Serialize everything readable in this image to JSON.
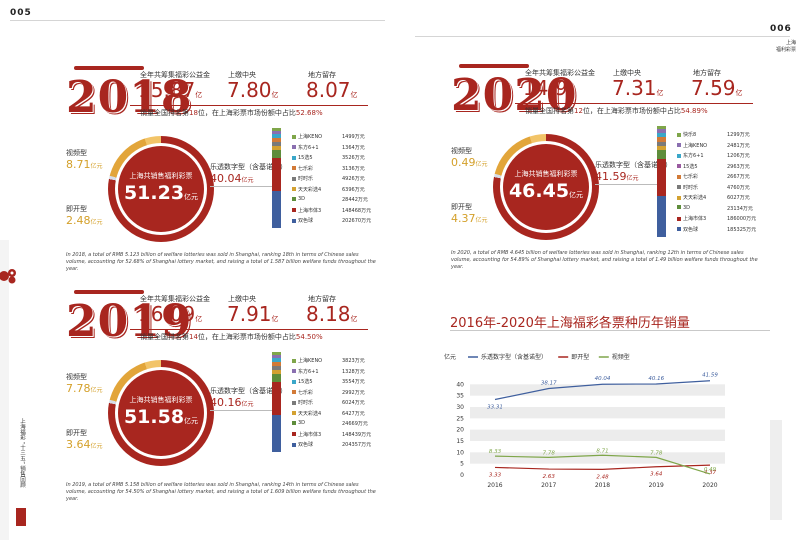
{
  "pages": {
    "left_no": "005",
    "right_no": "006",
    "right_corner": [
      "上海",
      "福利彩票"
    ]
  },
  "side_vertical": "上海福彩 “十三五” 销售回顾",
  "side_page_tag": "",
  "colors": {
    "brand_red": "#a8261f",
    "gold": "#e2a53a",
    "blue": "#3f5f9e",
    "green": "#7fa64a"
  },
  "panels": [
    {
      "id": "2018",
      "year": "2018",
      "kpis": [
        {
          "label": "全年共筹集福彩公益金",
          "value": "15.87",
          "unit": "亿"
        },
        {
          "label": "上缴中央",
          "value": "7.80",
          "unit": "亿"
        },
        {
          "label": "地方留存",
          "value": "8.07",
          "unit": "亿"
        }
      ],
      "rank_pre": "销量全国排名第",
      "rank": "18",
      "rank_mid": "位，在上海彩票市场份额中占比",
      "share": "52.68%",
      "center_label": "上海共销售福利彩票",
      "center_value": "51.23",
      "center_unit": "亿元",
      "video_label": "视频型",
      "video_value": "8.71",
      "video_unit": "亿元",
      "instant_label": "即开型",
      "instant_value": "2.48",
      "instant_unit": "亿元",
      "lotto_label": "乐透数字型（含基诺型）",
      "lotto_value": "40.04",
      "lotto_unit": "亿元",
      "games": [
        {
          "name": "上海KENO",
          "value": "1499万元",
          "color": "#7fa64a"
        },
        {
          "name": "东方6+1",
          "value": "1364万元",
          "color": "#8a6fb0"
        },
        {
          "name": "15选5",
          "value": "3526万元",
          "color": "#3aa7c9"
        },
        {
          "name": "七乐彩",
          "value": "3136万元",
          "color": "#d27a37"
        },
        {
          "name": "时时乐",
          "value": "4926万元",
          "color": "#7a7a7a"
        },
        {
          "name": "天天彩选4",
          "value": "6396万元",
          "color": "#d3a131"
        },
        {
          "name": "3D",
          "value": "28442万元",
          "color": "#5e8d3b"
        },
        {
          "name": "上海市体3",
          "value": "148468万元",
          "color": "#a8261f"
        },
        {
          "name": "双色球",
          "value": "202670万元",
          "color": "#3f5f9e"
        }
      ],
      "english": "In 2018, a total of RMB 5.123 billion of welfare lotteries was sold in Shanghai, ranking 18th in terms of Chinese sales volume, accounting for 52.68% of Shanghai lottery market, and raising a total of 1.587 billion welfare funds throughout the year."
    },
    {
      "id": "2020",
      "year": "2020",
      "kpis": [
        {
          "label": "全年共筹集福彩公益金",
          "value": "14.9",
          "unit": "亿"
        },
        {
          "label": "上缴中央",
          "value": "7.31",
          "unit": "亿"
        },
        {
          "label": "地方留存",
          "value": "7.59",
          "unit": "亿"
        }
      ],
      "rank_pre": "销量全国排名第",
      "rank": "12",
      "rank_mid": "位，在上海彩票市场份额中占比",
      "share": "54.89%",
      "center_label": "上海共销售福利彩票",
      "center_value": "46.45",
      "center_unit": "亿元",
      "video_label": "视频型",
      "video_value": "0.49",
      "video_unit": "亿元",
      "instant_label": "即开型",
      "instant_value": "4.37",
      "instant_unit": "亿元",
      "lotto_label": "乐透数字型（含基诺型）",
      "lotto_value": "41.59",
      "lotto_unit": "亿元",
      "games": [
        {
          "name": "快乐8",
          "value": "1299万元",
          "color": "#7fa64a"
        },
        {
          "name": "上海KENO",
          "value": "2481万元",
          "color": "#8a6fb0"
        },
        {
          "name": "东方6+1",
          "value": "1206万元",
          "color": "#3aa7c9"
        },
        {
          "name": "15选5",
          "value": "2963万元",
          "color": "#9a5aa0"
        },
        {
          "name": "七乐彩",
          "value": "2667万元",
          "color": "#d27a37"
        },
        {
          "name": "时时乐",
          "value": "4760万元",
          "color": "#7a7a7a"
        },
        {
          "name": "天天彩选4",
          "value": "6027万元",
          "color": "#d3a131"
        },
        {
          "name": "3D",
          "value": "23134万元",
          "color": "#5e8d3b"
        },
        {
          "name": "上海市体3",
          "value": "186000万元",
          "color": "#a8261f"
        },
        {
          "name": "双色球",
          "value": "185325万元",
          "color": "#3f5f9e"
        }
      ],
      "english": "In 2020, a total of RMB 4.645 billion of welfare lotteries was sold in Shanghai, ranking 12th in terms of Chinese sales volume, accounting for 54.89% of Shanghai lottery market, and raising a total of 1.49 billion welfare funds throughout the year."
    },
    {
      "id": "2019",
      "year": "2019",
      "kpis": [
        {
          "label": "全年共筹集福彩公益金",
          "value": "16.09",
          "unit": "亿"
        },
        {
          "label": "上缴中央",
          "value": "7.91",
          "unit": "亿"
        },
        {
          "label": "地方留存",
          "value": "8.18",
          "unit": "亿"
        }
      ],
      "rank_pre": "销量全国排名第",
      "rank": "14",
      "rank_mid": "位，在上海彩票市场份额中占比",
      "share": "54.50%",
      "center_label": "上海共销售福利彩票",
      "center_value": "51.58",
      "center_unit": "亿元",
      "video_label": "视频型",
      "video_value": "7.78",
      "video_unit": "亿元",
      "instant_label": "即开型",
      "instant_value": "3.64",
      "instant_unit": "亿元",
      "lotto_label": "乐透数字型（含基诺型）",
      "lotto_value": "40.16",
      "lotto_unit": "亿元",
      "games": [
        {
          "name": "上海KENO",
          "value": "3823万元",
          "color": "#7fa64a"
        },
        {
          "name": "东方6+1",
          "value": "1328万元",
          "color": "#8a6fb0"
        },
        {
          "name": "15选5",
          "value": "3554万元",
          "color": "#3aa7c9"
        },
        {
          "name": "七乐彩",
          "value": "2992万元",
          "color": "#d27a37"
        },
        {
          "name": "时时乐",
          "value": "6024万元",
          "color": "#7a7a7a"
        },
        {
          "name": "天天彩选4",
          "value": "6427万元",
          "color": "#d3a131"
        },
        {
          "name": "3D",
          "value": "24669万元",
          "color": "#5e8d3b"
        },
        {
          "name": "上海市体3",
          "value": "148439万元",
          "color": "#a8261f"
        },
        {
          "name": "双色球",
          "value": "204357万元",
          "color": "#3f5f9e"
        }
      ],
      "english": "In 2019, a total of RMB 5.158 billion of welfare lotteries was sold in Shanghai, ranking 14th in terms of Chinese sales volume, accounting for 54.50% of Shanghai lottery market, and raising a total of 1.609 billion welfare funds throughout the year."
    }
  ],
  "chart_data": {
    "type": "line",
    "title": "2016年-2020年上海福彩各票种历年销量",
    "ylabel": "亿元",
    "x": [
      "2016",
      "2017",
      "2018",
      "2019",
      "2020"
    ],
    "ylim": [
      0,
      45
    ],
    "yticks": [
      "0",
      "5",
      "10",
      "15",
      "20",
      "25",
      "30",
      "35",
      "40"
    ],
    "series": [
      {
        "name": "乐透数字型（含基诺型）",
        "color": "#3f5f9e",
        "values": [
          33.31,
          38.17,
          40.04,
          40.16,
          41.59
        ],
        "labels": [
          "33.31",
          "38.17",
          "40.04",
          "40.16",
          "41.59"
        ]
      },
      {
        "name": "即开型",
        "color": "#a8261f",
        "values": [
          3.33,
          2.63,
          2.48,
          3.64,
          4.37
        ],
        "labels": [
          "3.33",
          "2.63",
          "2.48",
          "3.64",
          "4.37"
        ]
      },
      {
        "name": "视频型",
        "color": "#7fa64a",
        "values": [
          8.33,
          7.78,
          8.71,
          7.78,
          0.49
        ],
        "labels": [
          "8.33",
          "7.78",
          "8.71",
          "7.78",
          "0.49"
        ]
      }
    ]
  }
}
